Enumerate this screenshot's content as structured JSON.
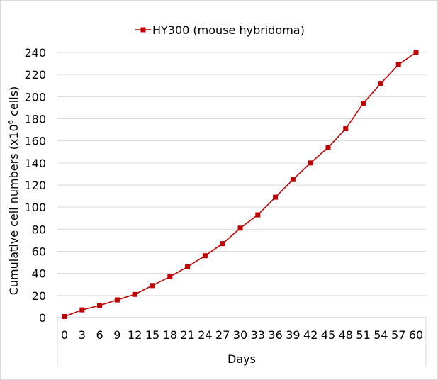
{
  "chart_data": {
    "type": "line",
    "title": "",
    "xlabel": "Days",
    "ylabel_prefix": "Cumulative cell numbers (x10",
    "ylabel_sup": "6",
    "ylabel_suffix": " cells)",
    "xlim": [
      0,
      60
    ],
    "ylim": [
      0,
      240
    ],
    "y_ticks": [
      0,
      20,
      40,
      60,
      80,
      100,
      120,
      140,
      160,
      180,
      200,
      220,
      240
    ],
    "x_ticks": [
      0,
      3,
      6,
      9,
      12,
      15,
      18,
      21,
      24,
      27,
      30,
      33,
      36,
      39,
      42,
      45,
      48,
      51,
      54,
      57,
      60
    ],
    "grid": "horizontal",
    "legend_position": "top",
    "series": [
      {
        "name": "HY300 (mouse hybridoma)",
        "color": "#c00000",
        "marker": "square",
        "x": [
          0,
          3,
          6,
          9,
          12,
          15,
          18,
          21,
          24,
          27,
          30,
          33,
          36,
          39,
          42,
          45,
          48,
          51,
          54,
          57,
          60
        ],
        "y": [
          1,
          7,
          11,
          16,
          21,
          29,
          37,
          46,
          56,
          67,
          81,
          93,
          109,
          125,
          140,
          154,
          171,
          194,
          212,
          229,
          240
        ]
      }
    ]
  }
}
